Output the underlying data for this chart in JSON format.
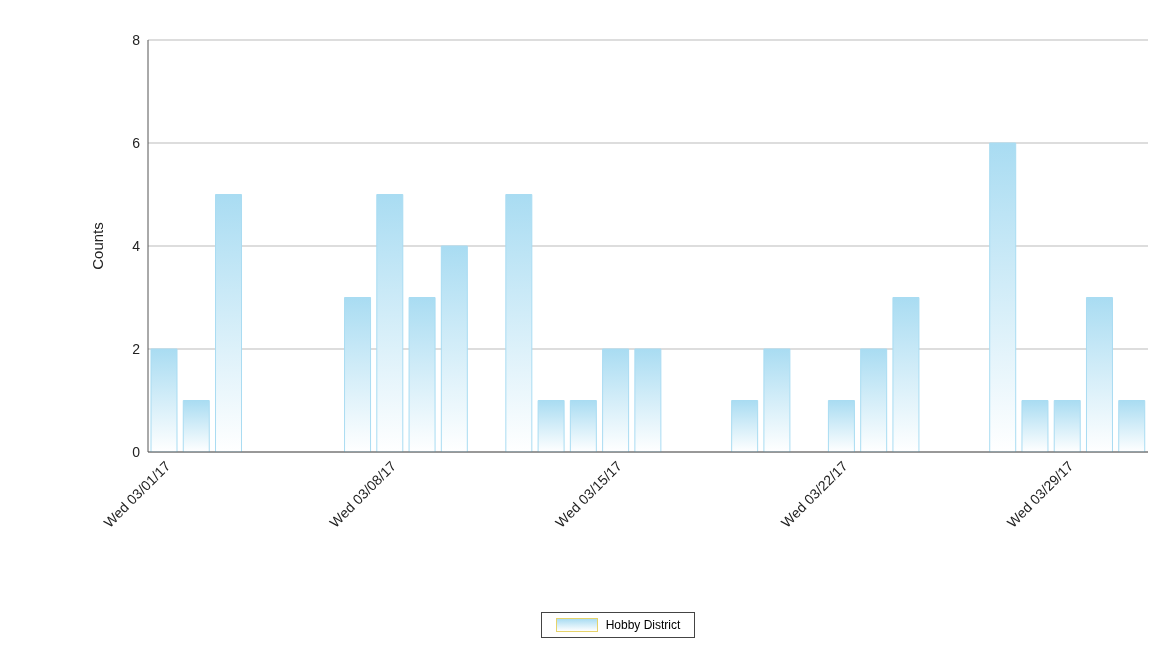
{
  "chart_data": {
    "type": "bar",
    "ylabel": "Counts",
    "categories": [
      "Wed 03/01/17",
      null,
      null,
      null,
      null,
      null,
      null,
      "Wed 03/08/17",
      null,
      null,
      null,
      null,
      null,
      null,
      "Wed 03/15/17",
      null,
      null,
      null,
      null,
      null,
      null,
      "Wed 03/22/17",
      null,
      null,
      null,
      null,
      null,
      null,
      "Wed 03/29/17",
      null,
      null
    ],
    "series": [
      {
        "name": "Hobby District",
        "color": "#a9dcf2",
        "values": [
          2,
          1,
          5,
          null,
          null,
          null,
          3,
          5,
          3,
          4,
          null,
          5,
          1,
          1,
          2,
          2,
          null,
          null,
          1,
          2,
          null,
          1,
          2,
          3,
          null,
          null,
          6,
          1,
          1,
          3,
          1
        ]
      }
    ],
    "ylim": [
      0,
      8
    ],
    "yticks": [
      0,
      2,
      4,
      6,
      8
    ],
    "grid": "y",
    "legend": "bottom"
  }
}
